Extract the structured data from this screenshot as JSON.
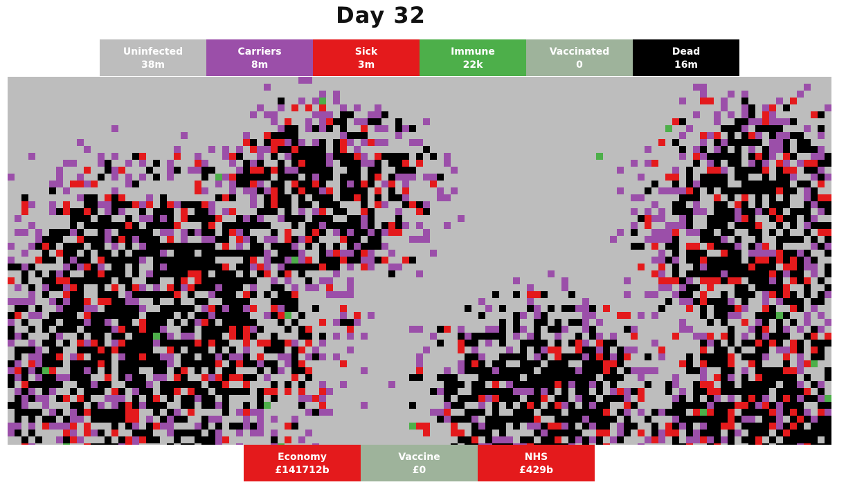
{
  "title": "Day 32",
  "stats": [
    {
      "key": "uninfected",
      "label": "Uninfected",
      "value": "38m",
      "color": "#bdbdbd"
    },
    {
      "key": "carriers",
      "label": "Carriers",
      "value": "8m",
      "color": "#9b4fa9"
    },
    {
      "key": "sick",
      "label": "Sick",
      "value": "3m",
      "color": "#e41a1c"
    },
    {
      "key": "immune",
      "label": "Immune",
      "value": "22k",
      "color": "#4daf4a"
    },
    {
      "key": "vaccinated",
      "label": "Vaccinated",
      "value": "0",
      "color": "#9eb39b"
    },
    {
      "key": "dead",
      "label": "Dead",
      "value": "16m",
      "color": "#000000"
    }
  ],
  "metrics": [
    {
      "key": "economy",
      "label": "Economy",
      "value": "£141712b",
      "color": "#e41a1c"
    },
    {
      "key": "vaccine",
      "label": "Vaccine",
      "value": "£0",
      "color": "#9eb39b"
    },
    {
      "key": "nhs",
      "label": "NHS",
      "value": "£429b",
      "color": "#e41a1c"
    }
  ],
  "grid_colors": {
    "uninfected": "#bdbdbd",
    "carrier": "#9b4fa9",
    "sick": "#e41a1c",
    "immune": "#4daf4a",
    "dead": "#000000"
  }
}
